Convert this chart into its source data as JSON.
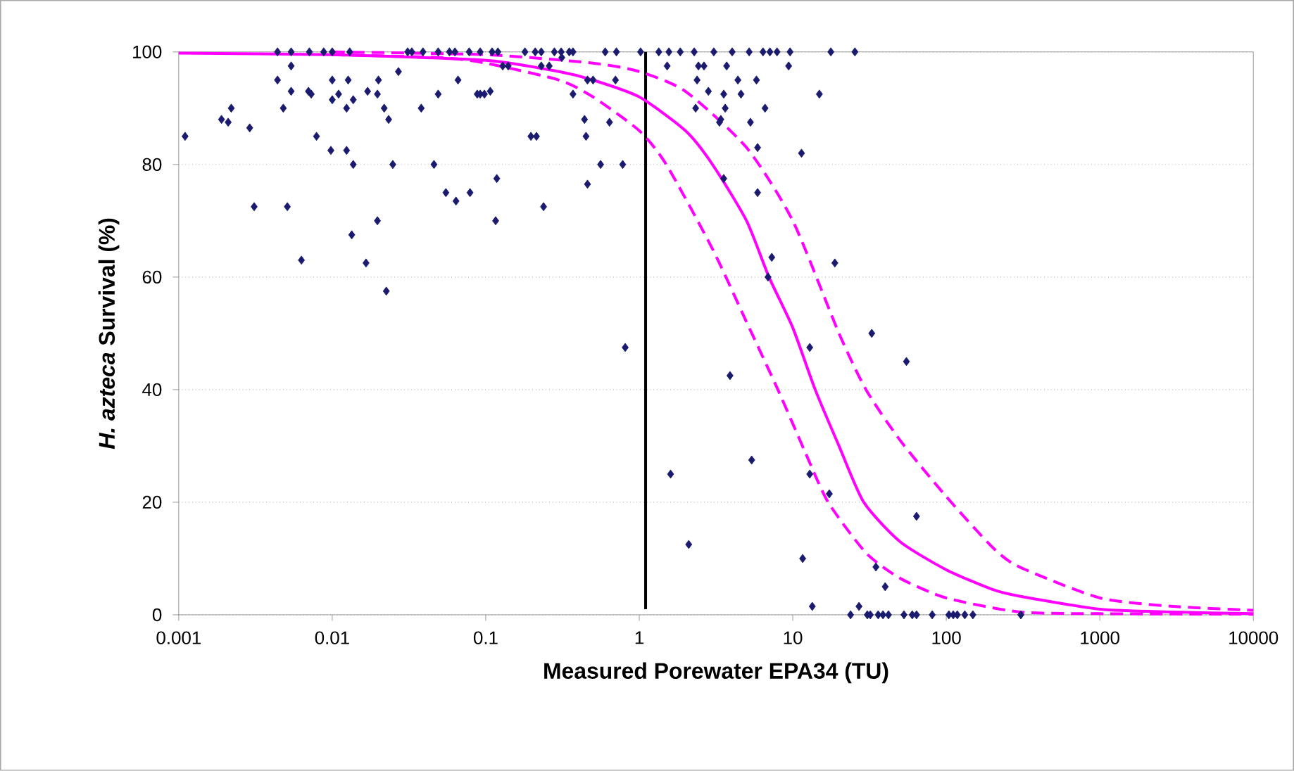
{
  "chart_data": {
    "type": "scatter",
    "xlabel": "Measured Porewater EPA34 (TU)",
    "ylabel": "*H. azteca* Survival (%)",
    "log": "x",
    "xlim": [
      0.001,
      10000
    ],
    "ylim": [
      0,
      100
    ],
    "xticks": [
      0.001,
      0.01,
      0.1,
      1,
      10,
      100,
      1000,
      10000
    ],
    "yticks": [
      0,
      20,
      40,
      60,
      80,
      100
    ],
    "grid": "y",
    "series": [
      {
        "marker": "diamond",
        "color": "#1a1a6e",
        "x": [
          0.0044,
          0.0054,
          0.0071,
          0.0088,
          0.01,
          0.013,
          0.031,
          0.033,
          0.039,
          0.049,
          0.058,
          0.063,
          0.078,
          0.092,
          0.11,
          0.12,
          0.18,
          0.21,
          0.23,
          0.28,
          0.31,
          0.35,
          0.37,
          0.6,
          0.71,
          1.02,
          1.34,
          1.56,
          1.85,
          2.28,
          3.06,
          4.03,
          5.2,
          6.4,
          7.1,
          7.9,
          9.6,
          17.7,
          25.4,
          0.0011,
          0.0019,
          0.0021,
          0.0022,
          0.0029,
          0.0031,
          0.0044,
          0.0048,
          0.0051,
          0.0054,
          0.0054,
          0.0063,
          0.007,
          0.0073,
          0.0079,
          0.0098,
          0.01,
          0.01,
          0.011,
          0.0124,
          0.0127,
          0.0124,
          0.0137,
          0.0134,
          0.0137,
          0.0166,
          0.017,
          0.0197,
          0.02,
          0.0197,
          0.0218,
          0.0233,
          0.0225,
          0.0248,
          0.027,
          0.038,
          0.046,
          0.049,
          0.055,
          0.064,
          0.066,
          0.079,
          0.088,
          0.092,
          0.098,
          0.107,
          0.118,
          0.116,
          0.129,
          0.14,
          0.197,
          0.214,
          0.238,
          0.23,
          0.259,
          0.313,
          0.37,
          0.44,
          0.45,
          0.46,
          0.46,
          0.5,
          0.56,
          0.64,
          0.7,
          0.78,
          0.81,
          1.52,
          2.38,
          2.43,
          2.64,
          3.71,
          2.82,
          2.33,
          3.55,
          3.63,
          3.4,
          3.33,
          4.39,
          4.6,
          5.8,
          6.6,
          5.3,
          5.9,
          3.55,
          5.9,
          9.4,
          11.4,
          14.9,
          7.3,
          6.9,
          18.8,
          3.9,
          12.9,
          32.7,
          55,
          1.6,
          5.4,
          12.9,
          17.3,
          64,
          2.1,
          11.6,
          34.8,
          40,
          13.4,
          27,
          23.8,
          30.6,
          32,
          36,
          38.7,
          42,
          53,
          60,
          64,
          81,
          104,
          111,
          118,
          132,
          149,
          306
        ],
        "values": [
          100,
          100,
          100,
          100,
          100,
          100,
          100,
          100,
          100,
          100,
          100,
          100,
          100,
          100,
          100,
          100,
          100,
          100,
          100,
          100,
          100,
          100,
          100,
          100,
          100,
          100,
          100,
          100,
          100,
          100,
          100,
          100,
          100,
          100,
          100,
          100,
          100,
          100,
          100,
          85,
          88,
          87.5,
          90,
          86.5,
          72.5,
          95,
          90,
          72.5,
          97.5,
          93,
          63,
          93,
          92.5,
          85,
          82.5,
          95,
          91.5,
          92.5,
          90,
          95,
          82.5,
          80,
          67.5,
          91.5,
          62.5,
          93,
          92.5,
          95,
          70,
          90,
          88,
          57.5,
          80,
          96.5,
          90,
          80,
          92.5,
          75,
          73.5,
          95,
          75,
          92.5,
          92.5,
          92.5,
          93,
          77.5,
          70,
          97.5,
          97.5,
          85,
          85,
          72.5,
          97.5,
          97.5,
          99,
          92.5,
          88,
          85,
          76.5,
          95,
          95,
          80,
          87.5,
          95,
          80,
          47.5,
          97.5,
          95,
          97.5,
          97.5,
          97.5,
          93,
          90,
          92.5,
          90,
          88,
          87.5,
          95,
          92.5,
          95,
          90,
          87.5,
          83,
          77.5,
          75,
          97.5,
          82,
          92.5,
          63.5,
          60,
          62.5,
          42.5,
          47.5,
          50,
          45,
          25,
          27.5,
          25,
          21.5,
          17.5,
          12.5,
          10,
          8.5,
          5,
          1.5,
          1.5,
          0,
          0,
          0,
          0,
          0,
          0,
          0,
          0,
          0,
          0,
          0,
          0,
          0,
          0,
          0,
          0
        ]
      },
      {
        "type": "line",
        "line_style": "solid",
        "color": "#ff00ff",
        "x": [
          0.001,
          0.01,
          0.1,
          0.3,
          0.5,
          1,
          2,
          3,
          5,
          7,
          10,
          14,
          20,
          29,
          50,
          100,
          200,
          300,
          1000,
          3000,
          10000
        ],
        "values": [
          99.8,
          99.5,
          98.5,
          96.5,
          95,
          92,
          86,
          80,
          70,
          60,
          51,
          40,
          30,
          20,
          13,
          8,
          4.5,
          3.3,
          1,
          0.5,
          0.2
        ]
      },
      {
        "type": "line",
        "line_style": "dashed",
        "color": "#ff00ff",
        "x": [
          0.01,
          0.1,
          0.5,
          1,
          2,
          5,
          10,
          20,
          30,
          50,
          100,
          200,
          300,
          1000,
          3000,
          10000
        ],
        "values": [
          100,
          99.5,
          98,
          96.5,
          93,
          83,
          70,
          50,
          40,
          31,
          21,
          12,
          8.5,
          3,
          1.5,
          0.8
        ]
      },
      {
        "type": "line",
        "line_style": "dashed",
        "color": "#ff00ff",
        "x": [
          0.01,
          0.05,
          0.1,
          0.3,
          0.5,
          1,
          1.5,
          3,
          5,
          8,
          12,
          17,
          30,
          50,
          100,
          300,
          1000,
          10000
        ],
        "values": [
          99.5,
          99,
          98,
          95,
          92,
          86,
          80,
          65,
          52,
          40,
          29,
          20,
          11,
          6.5,
          3,
          0.5,
          0.2,
          0.1
        ]
      }
    ],
    "ref_lines": [
      {
        "axis": "x",
        "value": 1.1,
        "color": "#000000",
        "line_style": "solid"
      }
    ]
  }
}
